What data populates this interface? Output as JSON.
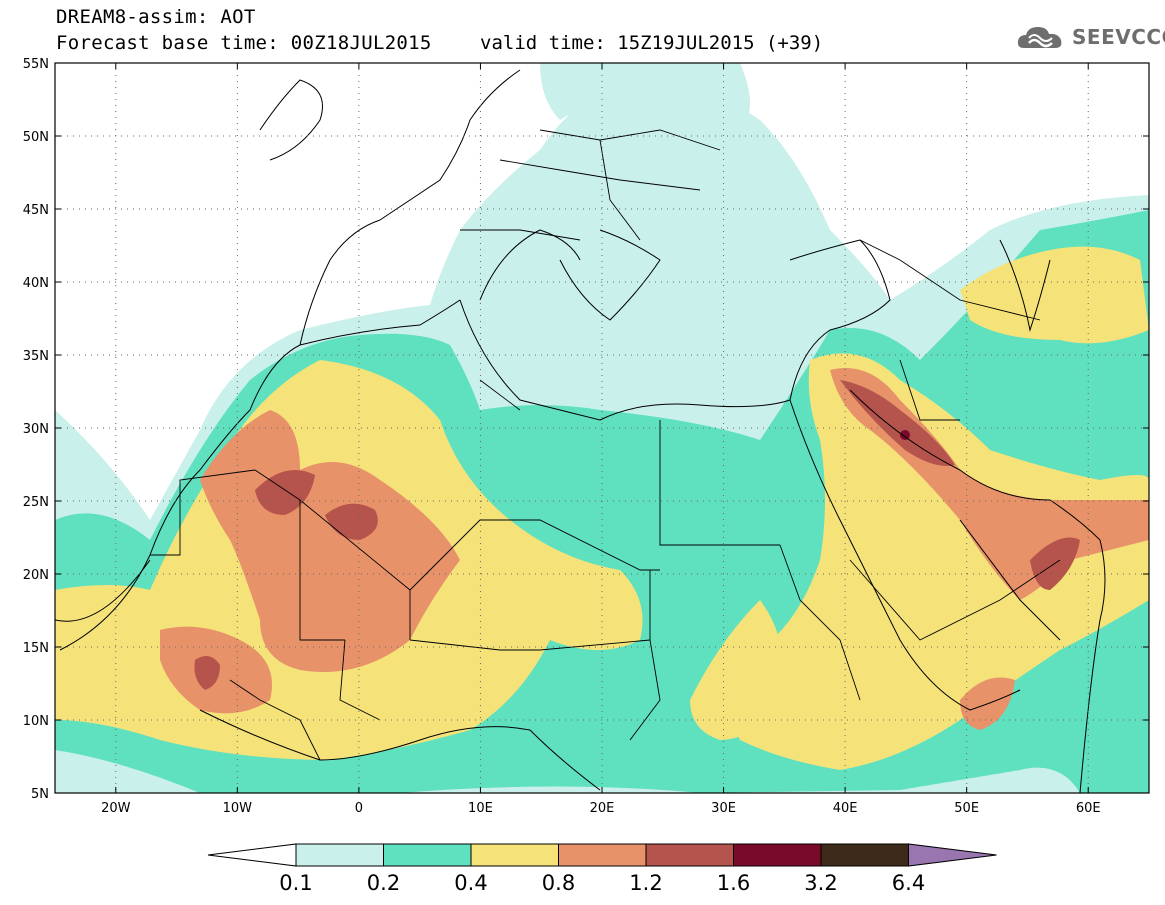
{
  "header": {
    "line1": "DREAM8-assim: AOT",
    "line2": "Forecast base time: 00Z18JUL2015",
    "valid": "valid time: 15Z19JUL2015 (+39)"
  },
  "logo": {
    "text": "SEEVCCC",
    "icon": "cloud-icon"
  },
  "map": {
    "lon_range": [
      -25,
      65
    ],
    "lat_range": [
      5,
      55
    ],
    "lat_labels": [
      "55N",
      "50N",
      "45N",
      "40N",
      "35N",
      "30N",
      "25N",
      "20N",
      "15N",
      "10N",
      "5N"
    ],
    "lon_labels": [
      "20W",
      "10W",
      "0",
      "10E",
      "20E",
      "30E",
      "40E",
      "50E",
      "60E"
    ],
    "grid": "dotted"
  },
  "colorbar": {
    "labels": [
      "0.1",
      "0.2",
      "0.4",
      "0.8",
      "1.2",
      "1.6",
      "3.2",
      "6.4"
    ],
    "colors": [
      "#ffffff",
      "#c9f0ea",
      "#5fe0bf",
      "#f5e37a",
      "#e8926a",
      "#b5544c",
      "#7a0a2a",
      "#3d2a1a",
      "#9a76b0"
    ]
  },
  "fields": {
    "colors": {
      "l1": "#c9f0ea",
      "l2": "#5fe0bf",
      "l3": "#f5e37a",
      "l4": "#e8926a",
      "l5": "#b5544c",
      "l6": "#7a0a2a"
    }
  }
}
